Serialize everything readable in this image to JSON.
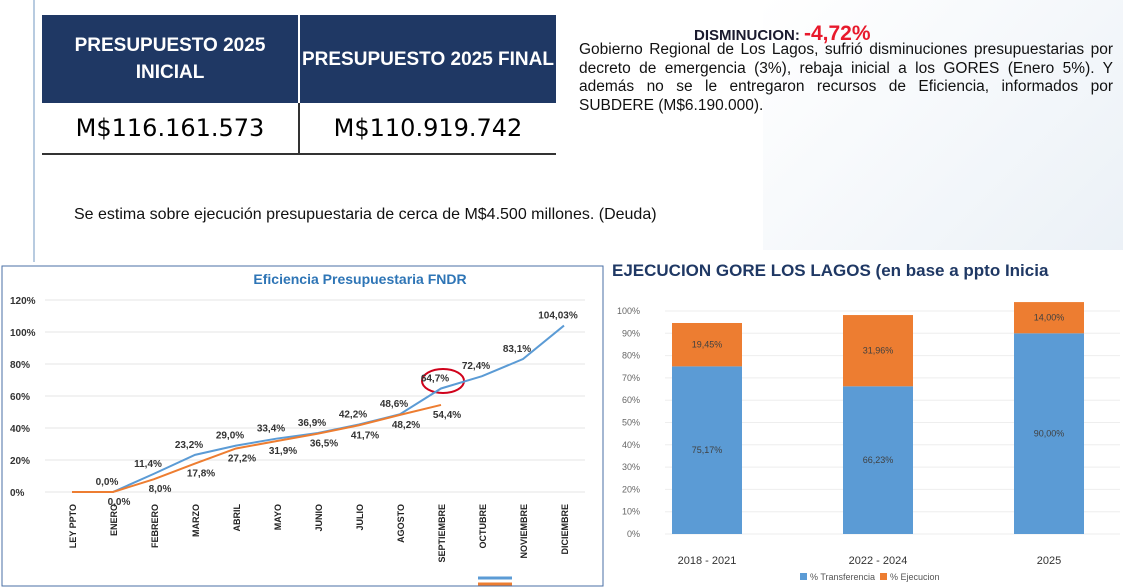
{
  "table": {
    "header": [
      "PRESUPUESTO 2025 INICIAL",
      "PRESUPUESTO 2025 FINAL"
    ],
    "rows": [
      [
        "M$116.161.573",
        "M$110.919.742"
      ]
    ]
  },
  "summary": {
    "label": "DISMINUCION:",
    "value": "-4,72%",
    "text": "Gobierno Regional de Los Lagos, sufrió disminuciones presupuestarias por decreto de emergencia (3%), rebaja inicial a los GORES (Enero 5%). Y además no se le entregaron recursos de Eficiencia, informados por SUBDERE (M$6.190.000)."
  },
  "note": "Se estima sobre ejecución presupuestaria de cerca de M$4.500 millones. (Deuda)",
  "chart_data": [
    {
      "type": "line",
      "title": "Eficiencia Presupuestaria FNDR",
      "categories": [
        "LEY PPTO",
        "ENERO",
        "FEBRERO",
        "MARZO",
        "ABRIL",
        "MAYO",
        "JUNIO",
        "JULIO",
        "AGOSTO",
        "SEPTIEMBRE",
        "OCTUBRE",
        "NOVIEMBRE",
        "DICIEMBRE"
      ],
      "series": [
        {
          "color": "#5b9bd5",
          "values": [
            0,
            0,
            11.4,
            23.2,
            29.0,
            33.4,
            36.9,
            42.2,
            48.6,
            64.7,
            72.4,
            83.1,
            104.03
          ],
          "value_labels": [
            null,
            "0,0%",
            "11,4%",
            "23,2%",
            "29,0%",
            "33,4%",
            "36,9%",
            "42,2%",
            "48,6%",
            "64,7%",
            "72,4%",
            "83,1%",
            "104,03%"
          ]
        },
        {
          "color": "#ed7d31",
          "values": [
            0,
            0,
            8.0,
            17.8,
            27.2,
            31.9,
            36.5,
            41.7,
            48.2,
            54.4,
            null,
            null,
            null
          ],
          "value_labels": [
            null,
            "0,0%",
            "8,0%",
            "17,8%",
            "27,2%",
            "31,9%",
            "36,5%",
            "41,7%",
            "48,2%",
            "54,4%",
            null,
            null,
            null
          ]
        }
      ],
      "ylim": [
        0,
        120
      ],
      "yticks": [
        {
          "value": 0,
          "label": "0%"
        },
        {
          "value": 20,
          "label": "20%"
        },
        {
          "value": 40,
          "label": "40%"
        },
        {
          "value": 60,
          "label": "60%"
        },
        {
          "value": 80,
          "label": "80%"
        },
        {
          "value": 100,
          "label": "100%"
        },
        {
          "value": 120,
          "label": "120%"
        }
      ],
      "grid": true
    },
    {
      "type": "stacked_bar",
      "title": "EJECUCION GORE LOS LAGOS (en base a ppto Inicia",
      "categories": [
        "2018 - 2021",
        "2022 - 2024",
        "2025"
      ],
      "series": [
        {
          "name": "% Transferencia",
          "color": "#5b9bd5",
          "values": [
            75.17,
            66.23,
            90.0
          ],
          "value_labels": [
            "75,17%",
            "66,23%",
            "90,00%"
          ]
        },
        {
          "name": "% Ejecucion",
          "color": "#ed7d31",
          "values": [
            19.45,
            31.96,
            14.0
          ],
          "value_labels": [
            "19,45%",
            "31,96%",
            "14,00%"
          ]
        }
      ],
      "ylim": [
        0,
        100
      ],
      "yticks": [
        {
          "value": 0,
          "label": "0%"
        },
        {
          "value": 10,
          "label": "10%"
        },
        {
          "value": 20,
          "label": "20%"
        },
        {
          "value": 30,
          "label": "30%"
        },
        {
          "value": 40,
          "label": "40%"
        },
        {
          "value": 50,
          "label": "50%"
        },
        {
          "value": 60,
          "label": "60%"
        },
        {
          "value": 70,
          "label": "70%"
        },
        {
          "value": 80,
          "label": "80%"
        },
        {
          "value": 90,
          "label": "90%"
        },
        {
          "value": 100,
          "label": "100%"
        }
      ],
      "grid": true
    }
  ]
}
